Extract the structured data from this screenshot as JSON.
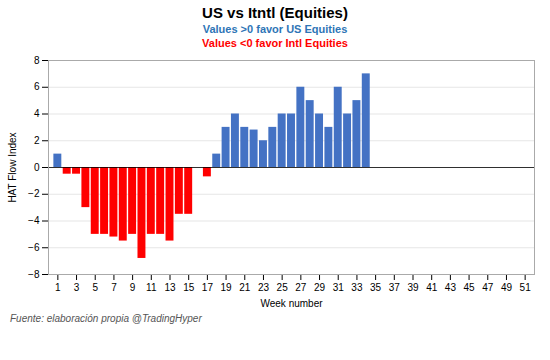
{
  "chart_data": {
    "type": "bar",
    "title": "US vs Itntl (Equities)",
    "subtitle": [
      {
        "text": "Values >0 favor US Equities",
        "color": "#2E75B6"
      },
      {
        "text": "Values <0 favor Intl Equities",
        "color": "#FF0000"
      }
    ],
    "caption": "Fuente: elaboración propia @TradingHyper",
    "xlabel": "Week number",
    "ylabel": "HAT Flow Index",
    "x": [
      1,
      2,
      3,
      4,
      5,
      6,
      7,
      8,
      9,
      10,
      11,
      12,
      13,
      14,
      15,
      16,
      17,
      18,
      19,
      20,
      21,
      22,
      23,
      24,
      25,
      26,
      27,
      28,
      29,
      30,
      31,
      32,
      33,
      34
    ],
    "values": [
      1.0,
      -0.5,
      -0.5,
      -3.0,
      -5.0,
      -5.0,
      -5.2,
      -5.5,
      -5.0,
      -6.8,
      -5.0,
      -5.0,
      -5.5,
      -3.5,
      -3.5,
      0.0,
      -0.7,
      1.0,
      3.0,
      4.0,
      3.0,
      2.8,
      2.0,
      3.0,
      4.0,
      4.0,
      6.0,
      5.0,
      4.0,
      3.0,
      6.0,
      4.0,
      5.0,
      7.0
    ],
    "colors": [
      "#4472C4",
      "#FF0000",
      "#FF0000",
      "#FF0000",
      "#FF0000",
      "#FF0000",
      "#FF0000",
      "#FF0000",
      "#FF0000",
      "#FF0000",
      "#FF0000",
      "#FF0000",
      "#FF0000",
      "#FF0000",
      "#FF0000",
      "#4472C4",
      "#FF0000",
      "#4472C4",
      "#4472C4",
      "#4472C4",
      "#4472C4",
      "#4472C4",
      "#4472C4",
      "#4472C4",
      "#4472C4",
      "#4472C4",
      "#4472C4",
      "#4472C4",
      "#4472C4",
      "#4472C4",
      "#4472C4",
      "#4472C4",
      "#4472C4",
      "#4472C4"
    ],
    "xlim": [
      0,
      52
    ],
    "xticks": [
      1,
      3,
      5,
      7,
      9,
      11,
      13,
      15,
      17,
      19,
      21,
      23,
      25,
      27,
      29,
      31,
      33,
      35,
      37,
      39,
      41,
      43,
      45,
      47,
      49,
      51
    ],
    "ylim": [
      -8,
      8
    ],
    "yticks": [
      -8,
      -6,
      -4,
      -2,
      0,
      2,
      4,
      6,
      8
    ],
    "grid": true
  }
}
